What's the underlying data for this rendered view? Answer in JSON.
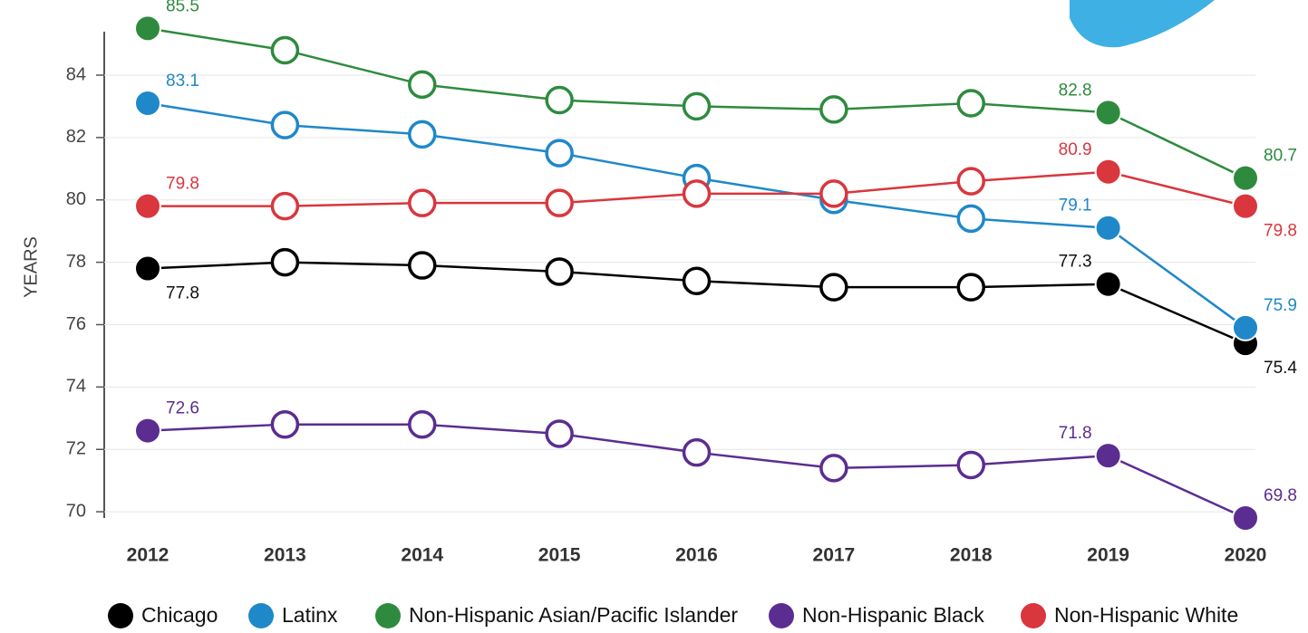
{
  "chart_data": {
    "type": "line",
    "y_label": "YEARS",
    "categories": [
      "2012",
      "2013",
      "2014",
      "2015",
      "2016",
      "2017",
      "2018",
      "2019",
      "2020"
    ],
    "ylim": [
      69.8,
      85.8
    ],
    "yticks": [
      70,
      72,
      74,
      76,
      78,
      80,
      82,
      84
    ],
    "grid": true,
    "legend": "bottom",
    "series": [
      {
        "name": "Chicago",
        "color": "#000000",
        "values": [
          77.8,
          78.0,
          77.9,
          77.7,
          77.4,
          77.2,
          77.2,
          77.3,
          75.4
        ],
        "value_labels": [
          "77.8",
          null,
          null,
          null,
          null,
          null,
          null,
          "77.3",
          "75.4"
        ]
      },
      {
        "name": "Latinx",
        "color": "#1f88c9",
        "values": [
          83.1,
          82.4,
          82.1,
          81.5,
          80.7,
          80.0,
          79.4,
          79.1,
          75.9
        ],
        "value_labels": [
          "83.1",
          null,
          null,
          null,
          null,
          null,
          null,
          "79.1",
          "75.9"
        ]
      },
      {
        "name": "Non-Hispanic Asian/Pacific Islander",
        "color": "#2e8b3e",
        "values": [
          85.5,
          84.8,
          83.7,
          83.2,
          83.0,
          82.9,
          83.1,
          82.8,
          80.7
        ],
        "value_labels": [
          "85.5",
          null,
          null,
          null,
          null,
          null,
          null,
          "82.8",
          "80.7"
        ]
      },
      {
        "name": "Non-Hispanic Black",
        "color": "#5b2d91",
        "values": [
          72.6,
          72.8,
          72.8,
          72.5,
          71.9,
          71.4,
          71.5,
          71.8,
          69.8
        ],
        "value_labels": [
          "72.6",
          null,
          null,
          null,
          null,
          null,
          null,
          "71.8",
          "69.8"
        ]
      },
      {
        "name": "Non-Hispanic White",
        "color": "#d9363e",
        "values": [
          79.8,
          79.8,
          79.9,
          79.9,
          80.2,
          80.2,
          80.6,
          80.9,
          79.8
        ],
        "value_labels": [
          "79.8",
          null,
          null,
          null,
          null,
          null,
          null,
          "80.9",
          "79.8"
        ]
      }
    ]
  }
}
